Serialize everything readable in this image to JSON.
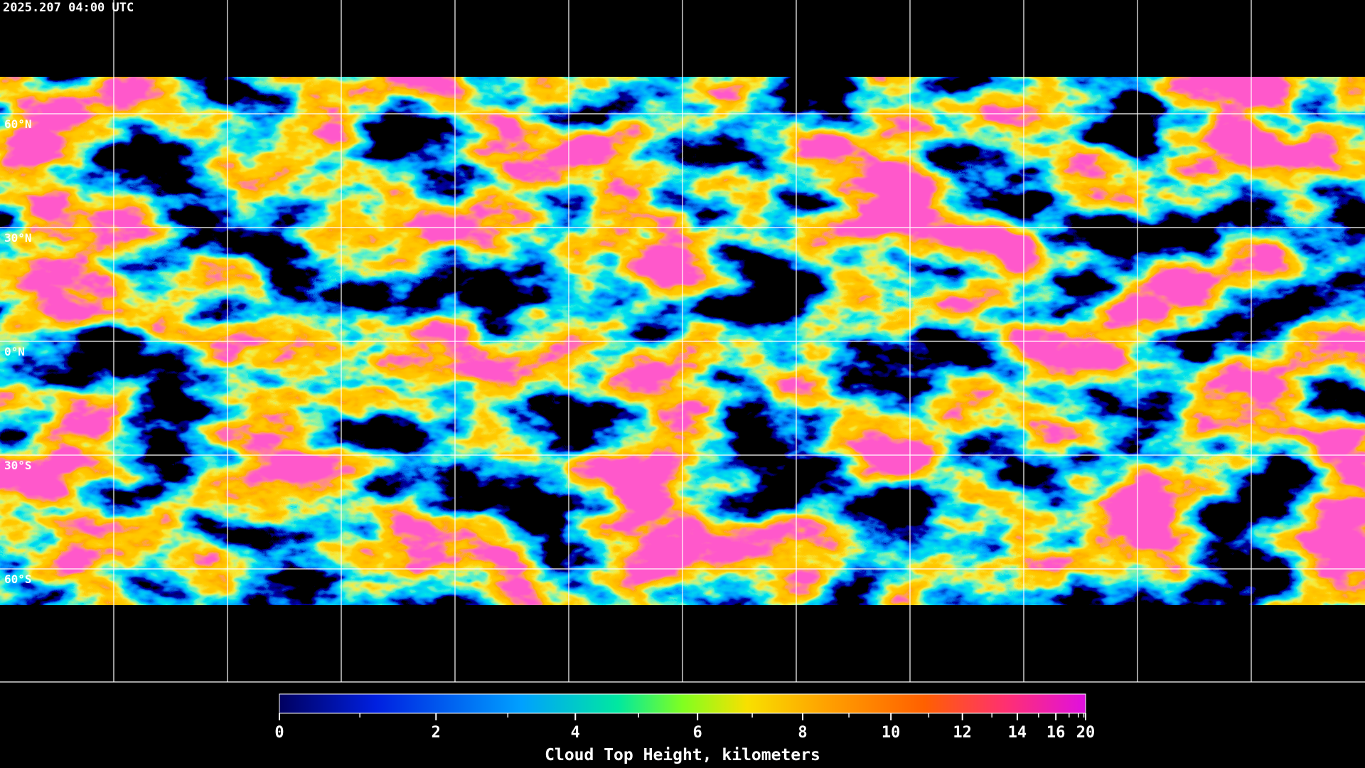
{
  "timestamp": "2025.207 04:00 UTC",
  "latitude_labels": [
    "60°N",
    "30°N",
    "0°N",
    "30°S",
    "60°S"
  ],
  "colorbar": {
    "title": "Cloud Top Height, kilometers",
    "range": [
      0,
      20
    ],
    "ticks": [
      0,
      2,
      4,
      6,
      8,
      10,
      12,
      14,
      16,
      20
    ],
    "minor_ticks": [
      1,
      3,
      5,
      7,
      9,
      11,
      13,
      15,
      17,
      18,
      19
    ]
  }
}
